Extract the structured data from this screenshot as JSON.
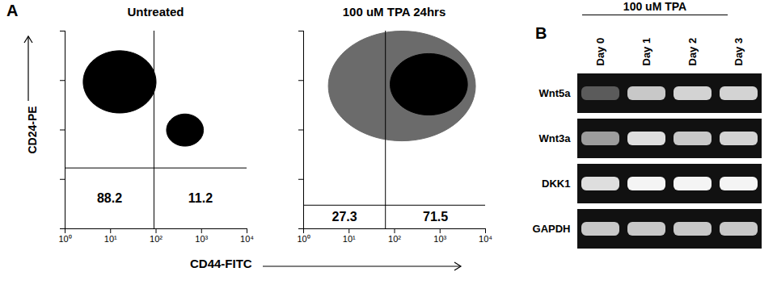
{
  "chart_data": [
    {
      "type": "scatter",
      "panel": "A",
      "title": "Untreated",
      "xlabel": "CD44-FITC",
      "ylabel": "CD24-PE",
      "log": true,
      "tick_labels": "x",
      "xlim": [
        1,
        10000
      ],
      "ylim": [
        1,
        10000
      ],
      "xticks": [
        {
          "value": 1,
          "label": "10⁰"
        },
        {
          "value": 10,
          "label": "10¹"
        },
        {
          "value": 100,
          "label": "10²"
        },
        {
          "value": 1000,
          "label": "10³"
        },
        {
          "value": 10000,
          "label": "10⁴"
        }
      ],
      "yticks": [
        1,
        10,
        100,
        1000,
        10000
      ],
      "gates": {
        "x": 90,
        "y": 17
      },
      "quadrant_percentages": {
        "lower_left": 88.2,
        "lower_right": 11.2
      },
      "populations": [
        {
          "x": [
            2.5,
            100
          ],
          "y": [
            220,
            4000
          ],
          "color": "#000000"
        },
        {
          "x": [
            170,
            1100
          ],
          "y": [
            47,
            210
          ],
          "color": "#000000"
        }
      ]
    },
    {
      "type": "scatter",
      "title": "100 uM TPA 24hrs",
      "log": true,
      "tick_labels": "x",
      "xlim": [
        1,
        10000
      ],
      "ylim": [
        1,
        10000
      ],
      "xticks": [
        {
          "value": 1,
          "label": "10⁰"
        },
        {
          "value": 10,
          "label": "10¹"
        },
        {
          "value": 100,
          "label": "10²"
        },
        {
          "value": 1000,
          "label": "10³"
        },
        {
          "value": 10000,
          "label": "10⁴"
        }
      ],
      "yticks": [
        1,
        10,
        100,
        1000,
        10000
      ],
      "gates": {
        "x": 63,
        "y": 3
      },
      "quadrant_percentages": {
        "lower_left": 27.3,
        "lower_right": 71.5
      },
      "populations": [
        {
          "x": [
            3.5,
            6000
          ],
          "y": [
            60,
            10000
          ],
          "color": "#6b6b6b"
        },
        {
          "x": [
            80,
            4000
          ],
          "y": [
            200,
            3500
          ],
          "color": "#000000"
        }
      ]
    },
    {
      "type": "gel",
      "panel": "B",
      "title": "100 uM TPA",
      "lanes": [
        "Day 0",
        "Day 1",
        "Day 2",
        "Day 3"
      ],
      "intensity_range": [
        0,
        1
      ],
      "rows": [
        {
          "name": "Wnt5a",
          "intensity": [
            0.3,
            0.8,
            0.85,
            0.85
          ]
        },
        {
          "name": "Wnt3a",
          "intensity": [
            0.6,
            0.9,
            0.8,
            0.85
          ]
        },
        {
          "name": "DKK1",
          "intensity": [
            0.9,
            1.0,
            1.0,
            1.0
          ]
        },
        {
          "name": "GAPDH",
          "intensity": [
            0.8,
            0.8,
            0.8,
            0.8
          ]
        }
      ]
    }
  ]
}
